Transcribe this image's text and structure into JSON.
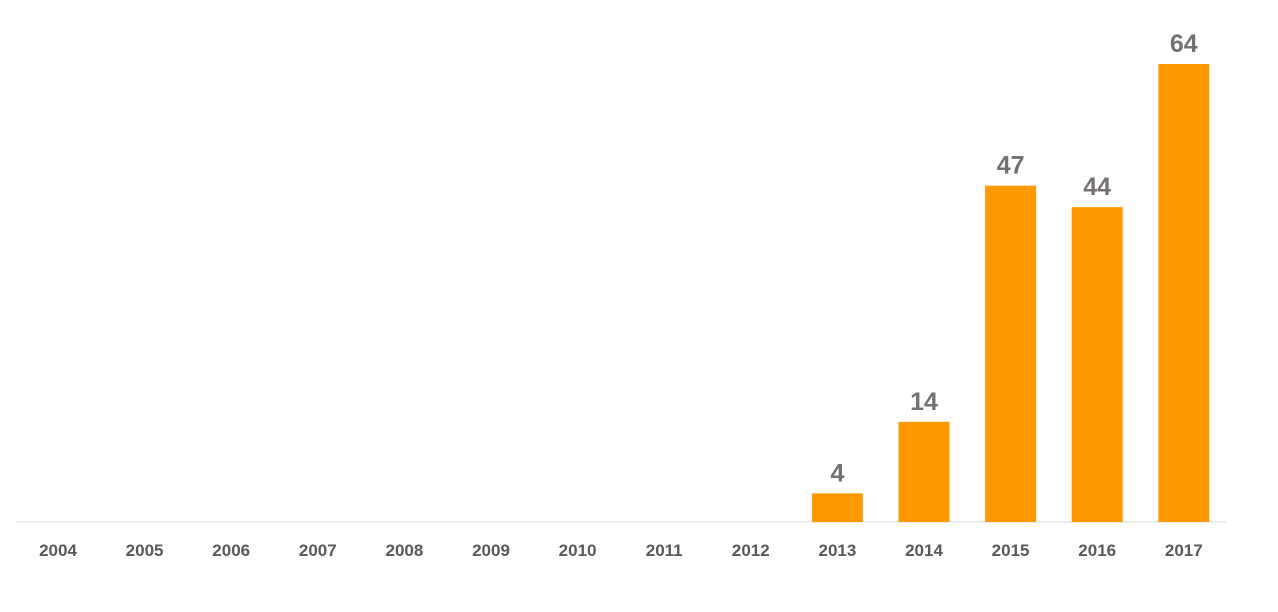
{
  "chart_data": {
    "type": "bar",
    "categories": [
      "2004",
      "2005",
      "2006",
      "2007",
      "2008",
      "2009",
      "2010",
      "2011",
      "2012",
      "2013",
      "2014",
      "2015",
      "2016",
      "2017"
    ],
    "values": [
      0,
      0,
      0,
      0,
      0,
      0,
      0,
      0,
      0,
      4,
      14,
      47,
      44,
      64
    ],
    "data_labels": [
      "",
      "",
      "",
      "",
      "",
      "",
      "",
      "",
      "",
      "4",
      "14",
      "47",
      "44",
      "64"
    ],
    "ylim": [
      0,
      64
    ],
    "grid": false,
    "legend": "none",
    "bar_color": "#ff9900",
    "label_color": "#767171",
    "tick_color": "#595959"
  }
}
